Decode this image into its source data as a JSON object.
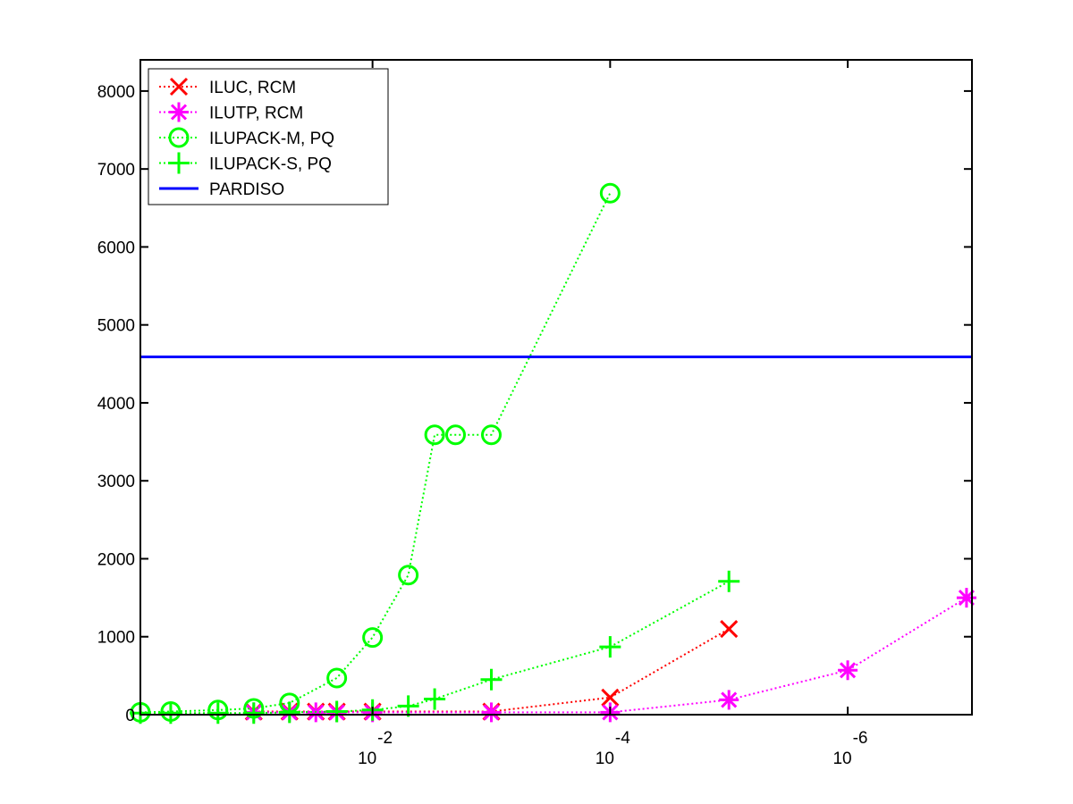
{
  "chart_data": {
    "type": "line",
    "title": "",
    "xlabel": "",
    "ylabel": "",
    "xscale": "log",
    "x_reversed": true,
    "xlim": [
      0.9,
      9e-08
    ],
    "ylim": [
      0,
      8400
    ],
    "grid": false,
    "legend_position": "top-left",
    "yticks": [
      0,
      1000,
      2000,
      3000,
      4000,
      5000,
      6000,
      7000,
      8000
    ],
    "yticklabels": [
      "0",
      "1000",
      "2000",
      "3000",
      "4000",
      "5000",
      "6000",
      "7000",
      "8000"
    ],
    "xticks": [
      0.01,
      0.0001,
      1e-06
    ],
    "xticklabels": [
      {
        "base": "10",
        "exp": "-2"
      },
      {
        "base": "10",
        "exp": "-4"
      },
      {
        "base": "10",
        "exp": "-6"
      }
    ],
    "series": [
      {
        "name": "ILUC, RCM",
        "color": "#ff0000",
        "marker": "x",
        "linestyle": "dotted",
        "x": [
          0.1,
          0.05,
          0.03,
          0.02,
          0.01,
          0.001,
          0.0001,
          1e-05
        ],
        "y": [
          40,
          40,
          40,
          40,
          40,
          40,
          220,
          1100
        ]
      },
      {
        "name": "ILUTP, RCM",
        "color": "#ff00ff",
        "marker": "asterisk",
        "linestyle": "dotted",
        "x": [
          0.1,
          0.05,
          0.03,
          0.02,
          0.01,
          0.001,
          0.0001,
          1e-05,
          1e-06,
          1e-07
        ],
        "y": [
          30,
          30,
          30,
          30,
          30,
          30,
          30,
          190,
          570,
          1500
        ]
      },
      {
        "name": "ILUPACK-M, PQ",
        "color": "#00ff00",
        "marker": "circle",
        "linestyle": "dotted",
        "x": [
          0.9,
          0.5,
          0.2,
          0.1,
          0.05,
          0.02,
          0.01,
          0.005,
          0.003,
          0.002,
          0.001,
          0.0001
        ],
        "y": [
          30,
          40,
          60,
          80,
          150,
          470,
          990,
          1790,
          3590,
          3590,
          3590,
          6690
        ]
      },
      {
        "name": "ILUPACK-S, PQ",
        "color": "#00ff00",
        "marker": "plus",
        "linestyle": "dotted",
        "x": [
          0.9,
          0.5,
          0.2,
          0.1,
          0.05,
          0.02,
          0.01,
          0.005,
          0.003,
          0.001,
          0.0001,
          1e-05
        ],
        "y": [
          20,
          20,
          20,
          20,
          30,
          40,
          60,
          110,
          200,
          450,
          870,
          1710
        ]
      },
      {
        "name": "PARDISO",
        "color": "#0000ff",
        "marker": "none",
        "linestyle": "solid",
        "x": [
          0.9,
          9e-08
        ],
        "y": [
          4590,
          4590
        ]
      }
    ]
  }
}
